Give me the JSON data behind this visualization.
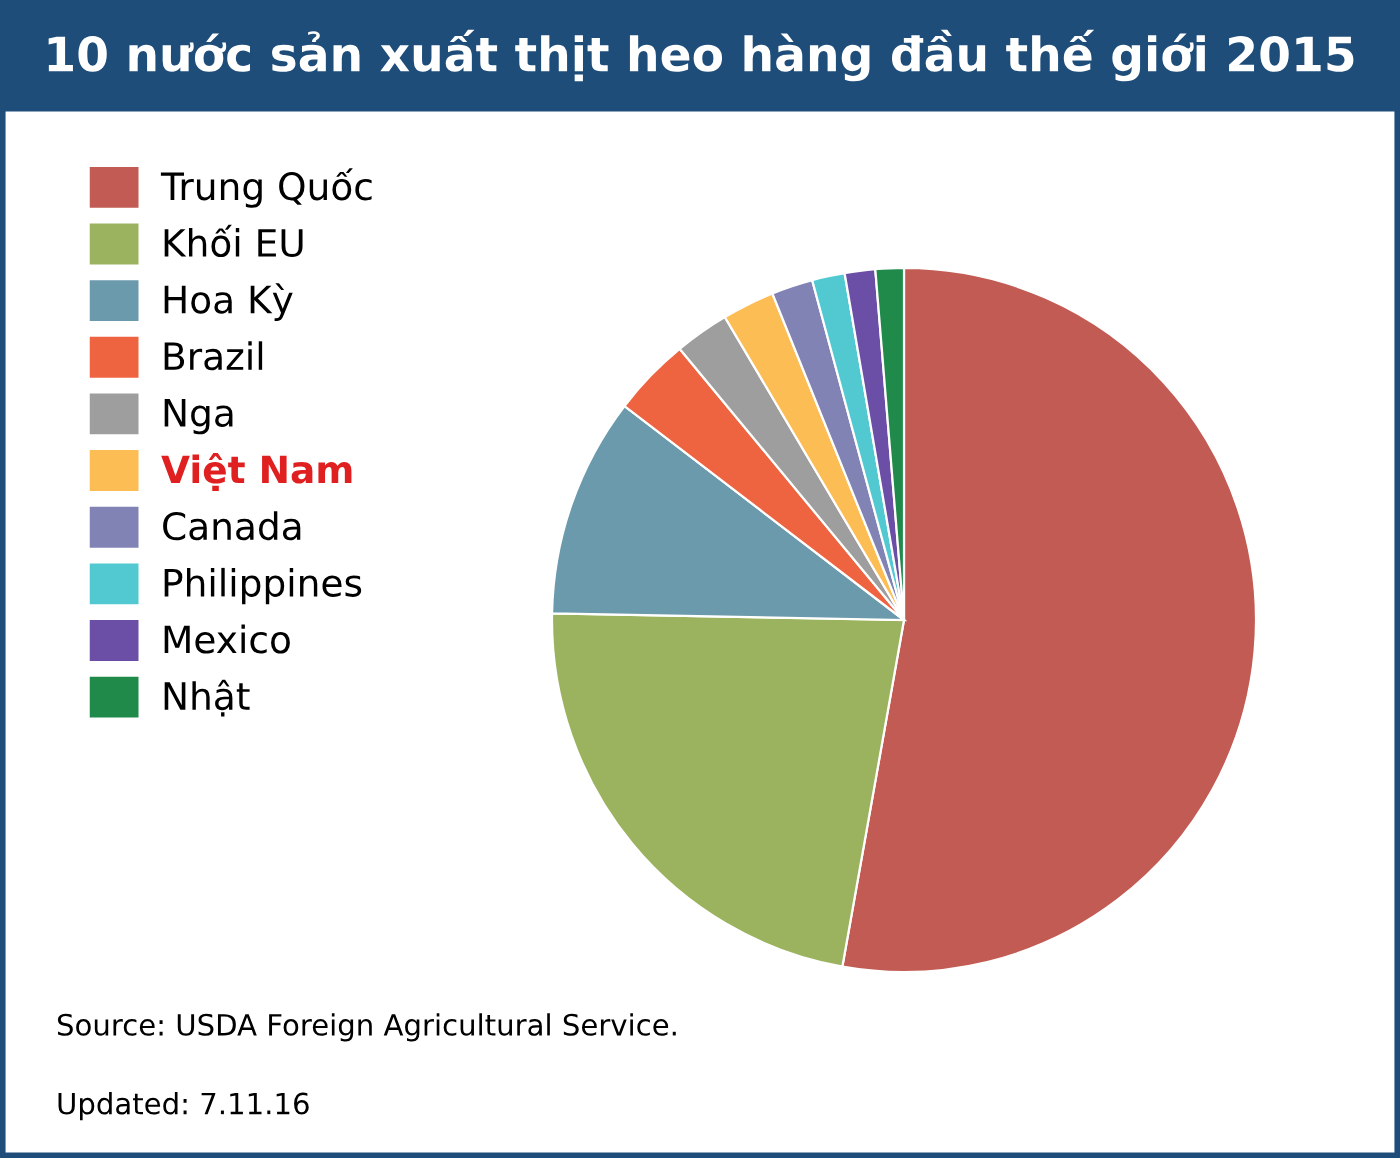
{
  "chart_data": {
    "type": "pie",
    "title": "10 nước sản xuất thịt heo hàng đầu thế giới 2015",
    "categories": [
      "Trung Quốc",
      "Khối EU",
      "Hoa Kỳ",
      "Brazil",
      "Nga",
      "Việt Nam",
      "Canada",
      "Philippines",
      "Mexico",
      "Nhật"
    ],
    "values": [
      52.8,
      22.5,
      10.1,
      3.6,
      2.5,
      2.4,
      1.9,
      1.5,
      1.4,
      1.3
    ],
    "colors": [
      "#c25b53",
      "#9bb35e",
      "#6a9aab",
      "#ee6440",
      "#9e9e9e",
      "#fcbd55",
      "#8283b5",
      "#52c9d0",
      "#6b4ea6",
      "#1f8a4a"
    ],
    "legend": "top left",
    "annotations": [
      "Source: USDA Foreign Agricultural Service.",
      "Updated: 7.11.16"
    ]
  }
}
